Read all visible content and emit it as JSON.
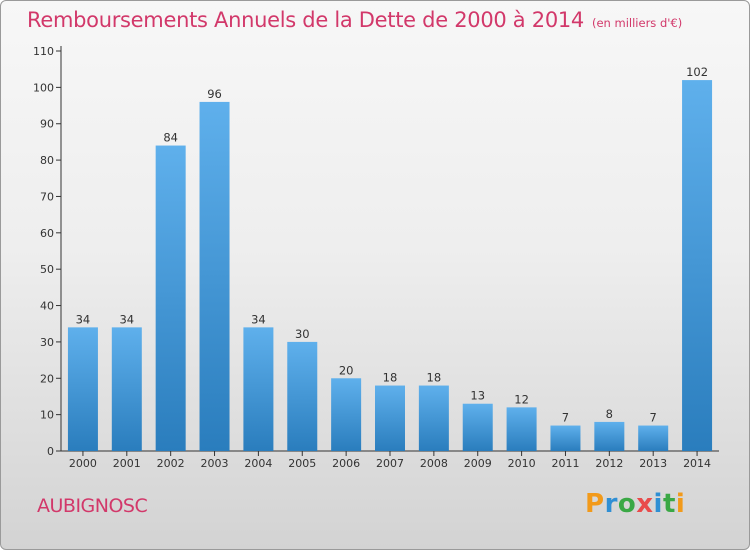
{
  "header": {
    "title": "Remboursements Annuels de la Dette de 2000 à 2014",
    "unit": "(en milliers d'€)"
  },
  "footer": {
    "commune": "AUBIGNOSC",
    "logo_letters": [
      "P",
      "r",
      "o",
      "x",
      "i",
      "t",
      "i"
    ]
  },
  "colors": {
    "title": "#d2386a",
    "bar_light": "#5fb0ec",
    "bar_dark": "#2a7dbd",
    "axis": "#333333"
  },
  "chart_data": {
    "type": "bar",
    "title": "Remboursements Annuels de la Dette de 2000 à 2014",
    "subtitle": "(en milliers d'€)",
    "categories": [
      "2000",
      "2001",
      "2002",
      "2003",
      "2004",
      "2005",
      "2006",
      "2007",
      "2008",
      "2009",
      "2010",
      "2011",
      "2012",
      "2013",
      "2014"
    ],
    "values": [
      34,
      34,
      84,
      96,
      34,
      30,
      20,
      18,
      18,
      13,
      12,
      7,
      8,
      7,
      102
    ],
    "ylim": [
      0,
      110
    ],
    "yticks": [
      0,
      10,
      20,
      30,
      40,
      50,
      60,
      70,
      80,
      90,
      100,
      110
    ],
    "xlabel": "",
    "ylabel": "",
    "grid": false,
    "legend": "none"
  }
}
